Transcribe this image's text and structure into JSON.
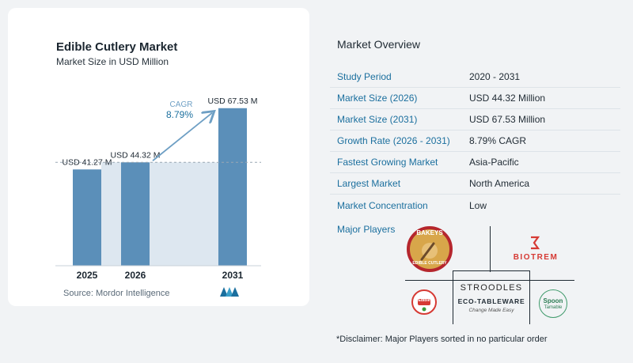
{
  "chart": {
    "title": "Edible Cutlery Market",
    "subtitle": "Market Size in USD Million",
    "source": "Source: Mordor Intelligence",
    "cagr_label": "CAGR",
    "cagr_value": "8.79%"
  },
  "chart_data": {
    "type": "bar",
    "title": "Edible Cutlery Market",
    "subtitle": "Market Size in USD Million",
    "categories": [
      "2025",
      "2026",
      "2031"
    ],
    "values": [
      41.27,
      44.32,
      67.53
    ],
    "data_labels": [
      "USD 41.27 M",
      "USD 44.32 M",
      "USD 67.53 M"
    ],
    "bar_color": "#5b8fb9",
    "reference_line": 44.32,
    "annotation": {
      "label": "CAGR",
      "value": "8.79%"
    }
  },
  "overview": {
    "title": "Market Overview",
    "rows": [
      {
        "label": "Study Period",
        "value": "2020 - 2031"
      },
      {
        "label": "Market Size (2026)",
        "value": "USD 44.32 Million"
      },
      {
        "label": "Market Size (2031)",
        "value": "USD 67.53 Million"
      },
      {
        "label": "Growth Rate (2026 - 2031)",
        "value": "8.79% CAGR"
      },
      {
        "label": "Fastest Growing Market",
        "value": "Asia-Pacific"
      },
      {
        "label": "Largest Market",
        "value": "North America"
      },
      {
        "label": "Market Concentration",
        "value": "Low"
      }
    ],
    "major_players_label": "Major Players"
  },
  "players": {
    "bakeys": "BAKEYS",
    "bakeys_sub": "EDIBLE CUTLERY",
    "biotrem": "BIOTREM",
    "stroodles": "STROODLES",
    "stroodles_sub": "ECO-TABLEWARE",
    "stroodles_tag": "Change Made Easy",
    "spoon": "Spoon",
    "spoon_sub": "Tamable",
    "edibles": "Edible"
  },
  "disclaimer": "*Disclaimer: Major Players sorted in no particular order",
  "colors": {
    "bar": "#5b8fb9",
    "accent": "#1b6f9e",
    "projection_fill": "#dde7f0"
  }
}
